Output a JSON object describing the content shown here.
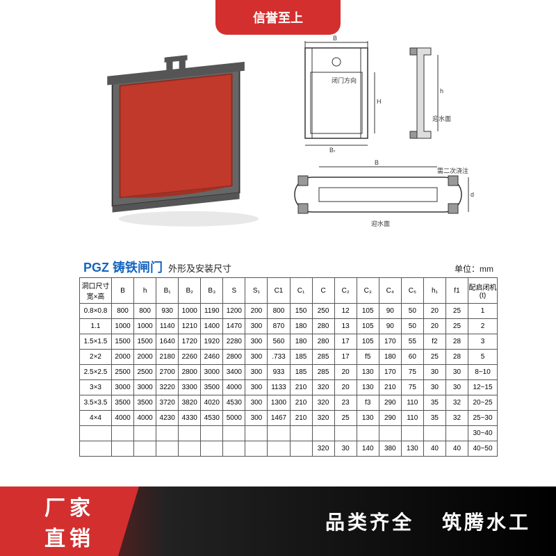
{
  "top_banner": "信誉至上",
  "title": {
    "main": "PGZ 铸铁闸门",
    "sub": "外形及安装尺寸",
    "unit": "单位：mm"
  },
  "diagram_labels": {
    "front_gate": "闭门方向",
    "side_water": "迎水面",
    "pour_note": "需二次浇注",
    "bottom_water": "迎水面"
  },
  "table": {
    "headers": [
      "洞口尺寸\n宽×高",
      "B",
      "h",
      "B₁",
      "B₂",
      "B₃",
      "S",
      "S₁",
      "C1",
      "C₁",
      "C",
      "C₂",
      "C₃",
      "C₄",
      "C₅",
      "h₁",
      "f1",
      "配启闭机\n(t)"
    ],
    "rows": [
      [
        "0.8×0.8",
        "800",
        "800",
        "930",
        "1000",
        "1190",
        "1200",
        "200",
        "800",
        "150",
        "250",
        "12",
        "105",
        "90",
        "50",
        "20",
        "25",
        "1"
      ],
      [
        "1.1",
        "1000",
        "1000",
        "1140",
        "1210",
        "1400",
        "1470",
        "300",
        "870",
        "180",
        "280",
        "13",
        "105",
        "90",
        "50",
        "20",
        "25",
        "2"
      ],
      [
        "1.5×1.5",
        "1500",
        "1500",
        "1640",
        "1720",
        "1920",
        "2280",
        "300",
        "560",
        "180",
        "280",
        "17",
        "105",
        "170",
        "55",
        "f2",
        "28",
        "3"
      ],
      [
        "2×2",
        "2000",
        "2000",
        "2180",
        "2260",
        "2460",
        "2800",
        "300",
        ".733",
        "185",
        "285",
        "17",
        "f5",
        "180",
        "60",
        "25",
        "28",
        "5"
      ],
      [
        "2.5×2.5",
        "2500",
        "2500",
        "2700",
        "2800",
        "3000",
        "3400",
        "300",
        "933",
        "185",
        "285",
        "20",
        "130",
        "170",
        "75",
        "30",
        "30",
        "8~10"
      ],
      [
        "3×3",
        "3000",
        "3000",
        "3220",
        "3300",
        "3500",
        "4000",
        "300",
        "1133",
        "210",
        "320",
        "20",
        "130",
        "210",
        "75",
        "30",
        "30",
        "12~15"
      ],
      [
        "3.5×3.5",
        "3500",
        "3500",
        "3720",
        "3820",
        "4020",
        "4530",
        "300",
        "1300",
        "210",
        "320",
        "23",
        "f3",
        "290",
        "110",
        "35",
        "32",
        "20~25"
      ],
      [
        "4×4",
        "4000",
        "4000",
        "4230",
        "4330",
        "4530",
        "5000",
        "300",
        "1467",
        "210",
        "320",
        "25",
        "130",
        "290",
        "110",
        "35",
        "32",
        "25~30"
      ],
      [
        "",
        "",
        "",
        "",
        "",
        "",
        "",
        "",
        "",
        "",
        "",
        "",
        "",
        "",
        "",
        "",
        "",
        "30~40"
      ],
      [
        "",
        "",
        "",
        "",
        "",
        "",
        "",
        "",
        "",
        "",
        "320",
        "30",
        "140",
        "380",
        "130",
        "40",
        "40",
        "40~50"
      ]
    ]
  },
  "bottom": {
    "left_line1": "厂家",
    "left_line2": "直销",
    "right_line1": "品类齐全",
    "right_line2": "筑腾水工"
  },
  "colors": {
    "red": "#d32f2f",
    "darkred": "#b71c1c",
    "blue": "#1565c0",
    "gate_red": "#c0392b",
    "gate_frame": "#555555",
    "diagram_stroke": "#333333"
  }
}
